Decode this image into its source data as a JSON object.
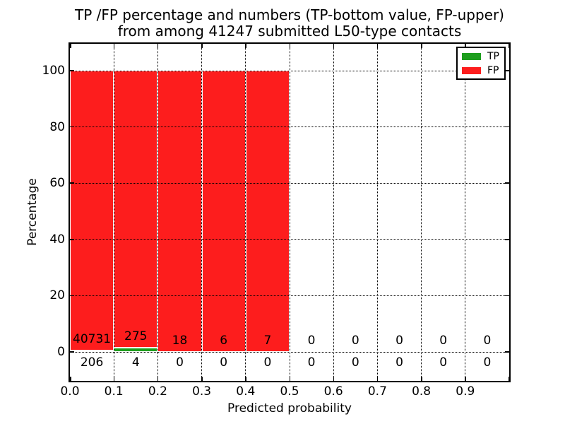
{
  "title": {
    "line1": "TP /FP percentage and numbers (TP-bottom value, FP-upper)",
    "line2": "from among 41247 submitted L50-type contacts"
  },
  "axes": {
    "xlabel": "Predicted probability",
    "ylabel": "Percentage"
  },
  "chart_data": {
    "type": "bar",
    "stacked": true,
    "title": "TP /FP percentage and numbers (TP-bottom value, FP-upper) from among 41247 submitted L50-type contacts",
    "xlabel": "Predicted probability",
    "ylabel": "Percentage",
    "total_contacts": 41247,
    "xlim": [
      0.0,
      1.0
    ],
    "ylim": [
      -10,
      110
    ],
    "grid": true,
    "legend_position": "upper right",
    "x_ticks": [
      "0.0",
      "0.1",
      "0.2",
      "0.3",
      "0.4",
      "0.5",
      "0.6",
      "0.7",
      "0.8",
      "0.9"
    ],
    "y_ticks": [
      "0",
      "20",
      "40",
      "60",
      "80",
      "100"
    ],
    "bin_edges": [
      0.0,
      0.1,
      0.2,
      0.3,
      0.4,
      0.5,
      0.6,
      0.7,
      0.8,
      0.9,
      1.0
    ],
    "categories": [
      "0.0-0.1",
      "0.1-0.2",
      "0.2-0.3",
      "0.3-0.4",
      "0.4-0.5",
      "0.5-0.6",
      "0.6-0.7",
      "0.7-0.8",
      "0.8-0.9",
      "0.9-1.0"
    ],
    "series": [
      {
        "name": "TP",
        "color": "#1e9e1e",
        "counts": [
          206,
          4,
          0,
          0,
          0,
          0,
          0,
          0,
          0,
          0
        ],
        "percent": [
          0.5,
          1.43,
          0,
          0,
          0,
          0,
          0,
          0,
          0,
          0
        ]
      },
      {
        "name": "FP",
        "color": "#fd1d1d",
        "counts": [
          40731,
          275,
          18,
          6,
          7,
          0,
          0,
          0,
          0,
          0
        ],
        "percent": [
          99.5,
          98.57,
          100,
          100,
          100,
          0,
          0,
          0,
          0,
          0
        ]
      }
    ]
  }
}
